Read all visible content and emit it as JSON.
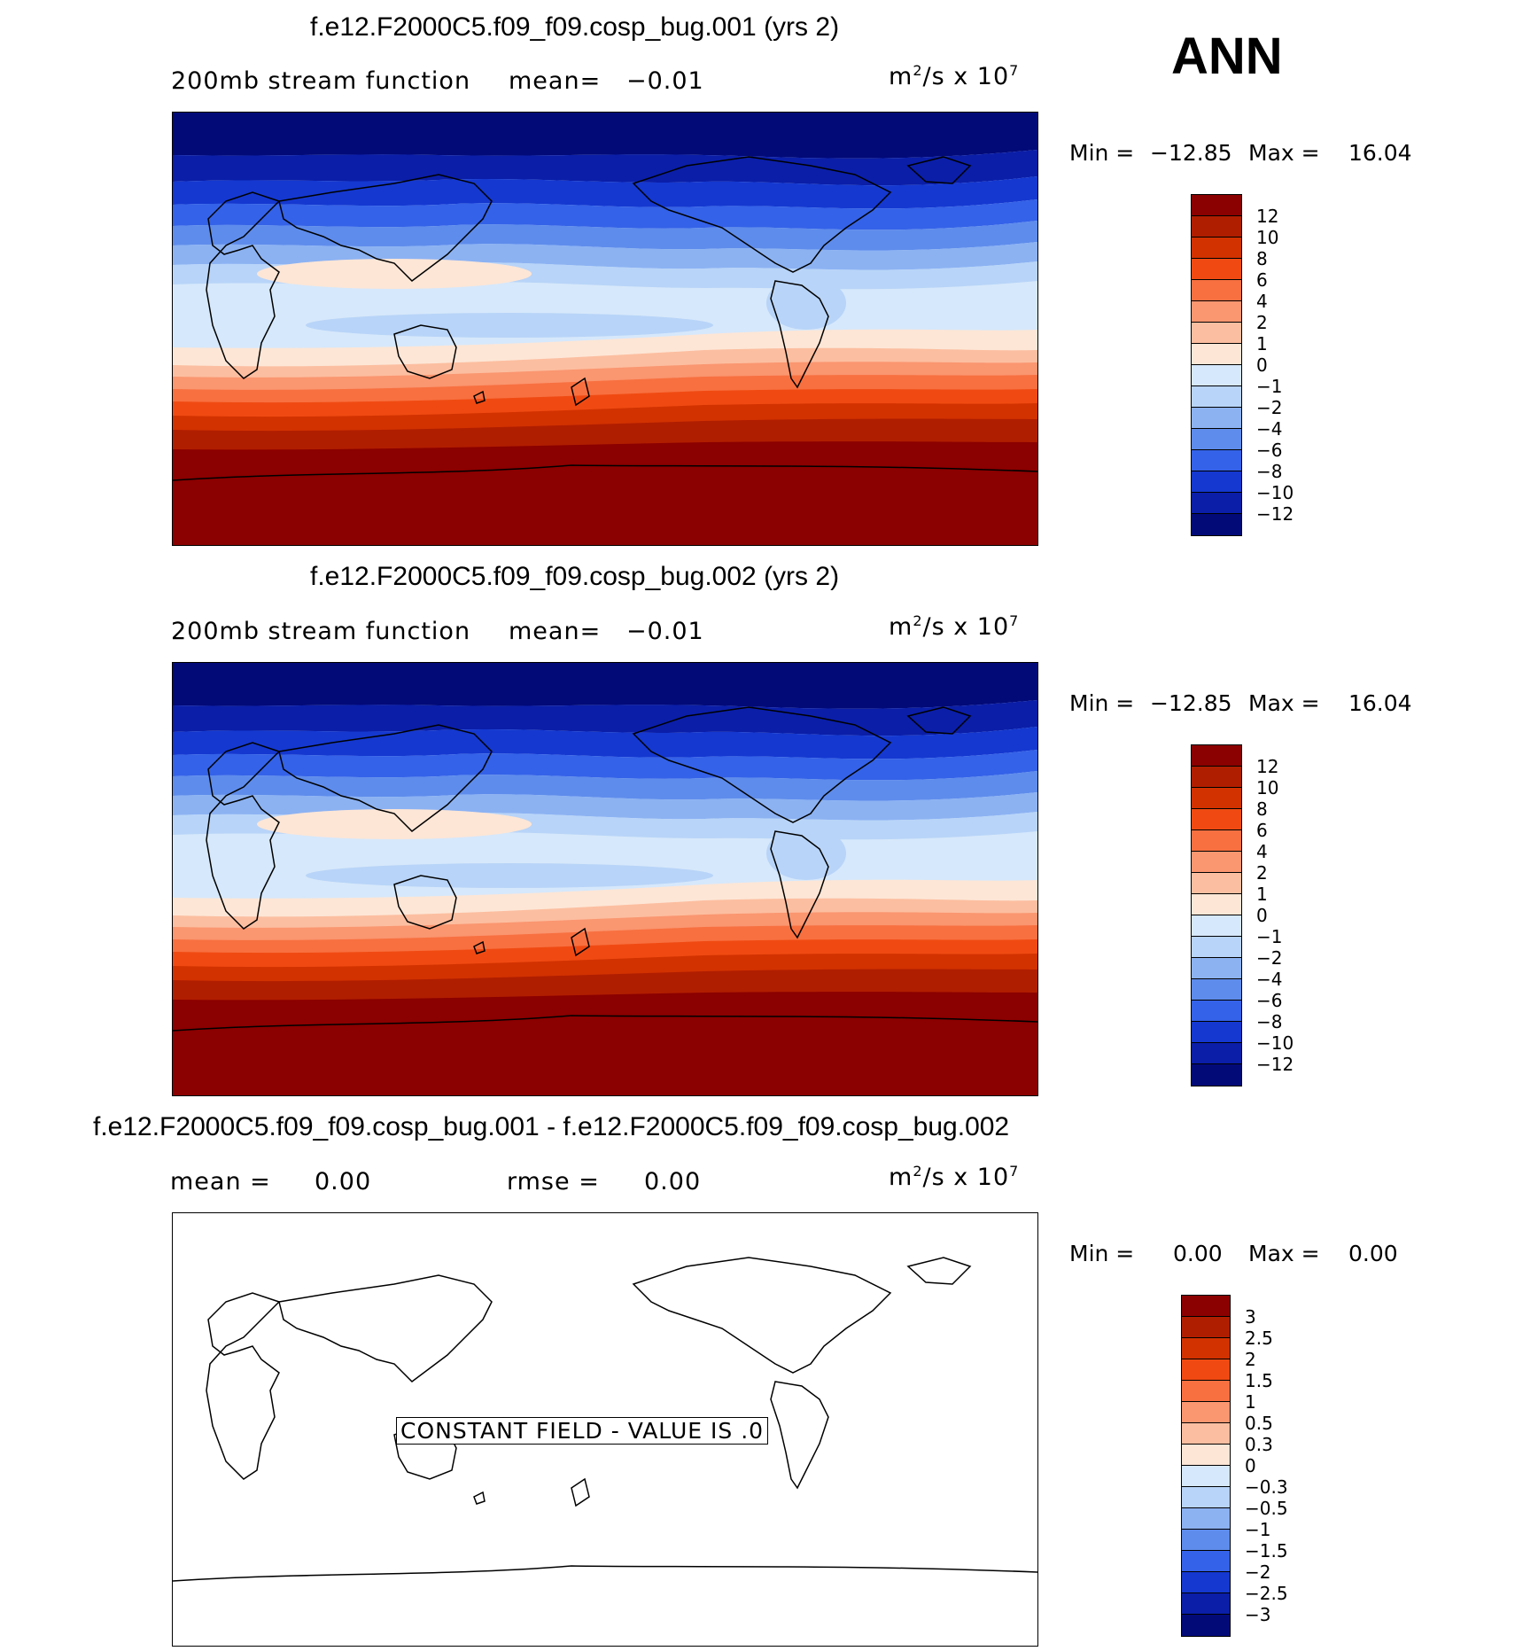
{
  "season": "ANN",
  "units_base": "m",
  "units_exp": "2",
  "units_mid": "/s x 10",
  "units_pow": "7",
  "panels": [
    {
      "title": "f.e12.F2000C5.f09_f09.cosp_bug.001 (yrs 2)",
      "field": "200mb stream function",
      "mean_label": "mean=",
      "mean_value": "−0.01",
      "min_label": "Min =",
      "min_value": "−12.85",
      "max_label": "Max =",
      "max_value": "16.04"
    },
    {
      "title": "f.e12.F2000C5.f09_f09.cosp_bug.002 (yrs 2)",
      "field": "200mb stream function",
      "mean_label": "mean=",
      "mean_value": "−0.01",
      "min_label": "Min =",
      "min_value": "−12.85",
      "max_label": "Max =",
      "max_value": "16.04"
    },
    {
      "title": "f.e12.F2000C5.f09_f09.cosp_bug.001 - f.e12.F2000C5.f09_f09.cosp_bug.002",
      "mean_label": "mean =",
      "mean_value": "0.00",
      "rmse_label": "rmse =",
      "rmse_value": "0.00",
      "min_label": "Min =",
      "min_value": "0.00",
      "max_label": "Max =",
      "max_value": "0.00",
      "constant_note": "CONSTANT FIELD - VALUE IS .0"
    }
  ],
  "colorbar_field": {
    "labels": [
      "12",
      "10",
      "8",
      "6",
      "4",
      "2",
      "1",
      "0",
      "−1",
      "−2",
      "−4",
      "−6",
      "−8",
      "−10",
      "−12"
    ],
    "colors": [
      "#8b0000",
      "#b01e00",
      "#d23200",
      "#f04a12",
      "#f87040",
      "#fa9670",
      "#fcbea0",
      "#fde6d6",
      "#d6e8fb",
      "#b8d4f8",
      "#8cb2f2",
      "#5e8cec",
      "#3462e8",
      "#1438d0",
      "#0a1ea8",
      "#020a78"
    ]
  },
  "colorbar_diff": {
    "labels": [
      "3",
      "2.5",
      "2",
      "1.5",
      "1",
      "0.5",
      "0.3",
      "0",
      "−0.3",
      "−0.5",
      "−1",
      "−1.5",
      "−2",
      "−2.5",
      "−3"
    ],
    "colors": [
      "#8b0000",
      "#b01e00",
      "#d23200",
      "#f04a12",
      "#f87040",
      "#fa9670",
      "#fcbea0",
      "#fde6d6",
      "#d6e8fb",
      "#b8d4f8",
      "#8cb2f2",
      "#5e8cec",
      "#3462e8",
      "#1438d0",
      "#0a1ea8",
      "#020a78"
    ]
  }
}
